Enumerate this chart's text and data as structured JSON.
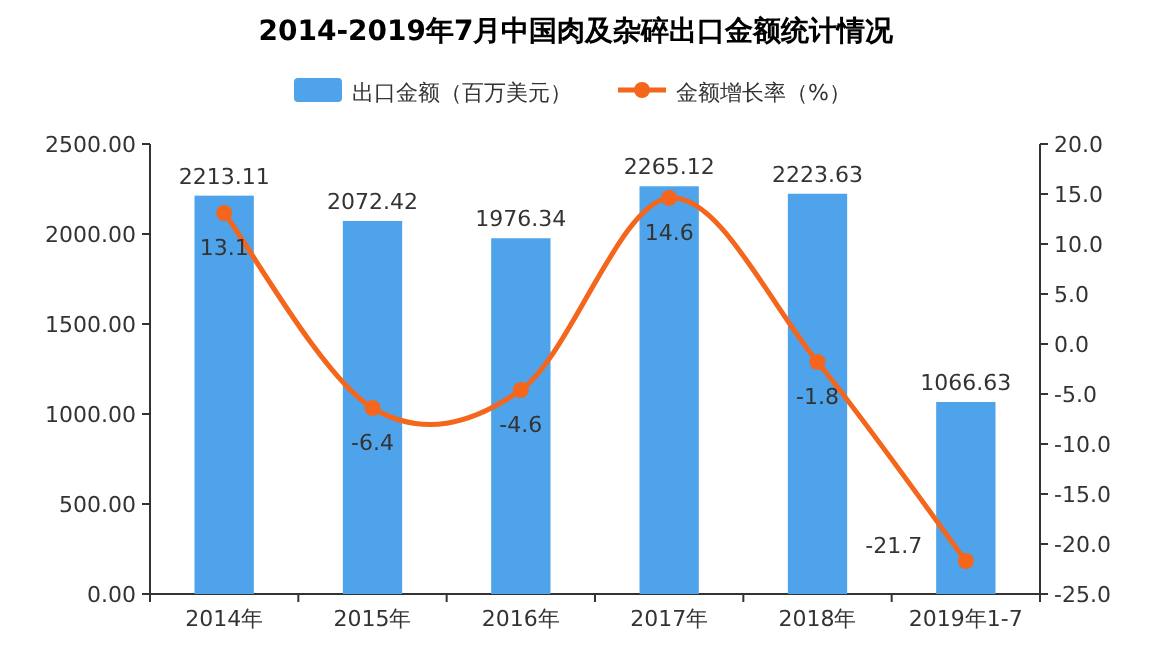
{
  "chart_data": {
    "type": "bar",
    "title": "2014-2019年7月中国肉及杂碎出口金额统计情况",
    "categories": [
      "2014年",
      "2015年",
      "2016年",
      "2017年",
      "2018年",
      "2019年1-7"
    ],
    "series": [
      {
        "name": "出口金额（百万美元）",
        "color": "#4fa3ea",
        "values": [
          2213.11,
          2072.42,
          1976.34,
          2265.12,
          2223.63,
          1066.63
        ]
      },
      {
        "name": "金额增长率（%）",
        "type": "line",
        "axis": "y2",
        "color": "#f3661c",
        "values": [
          13.1,
          -6.4,
          -4.6,
          14.6,
          -1.8,
          -21.7
        ]
      }
    ],
    "ylim": [
      0,
      2500
    ],
    "yticks": [
      {
        "value": 0,
        "label": "0.00"
      },
      {
        "value": 500,
        "label": "500.00"
      },
      {
        "value": 1000,
        "label": "1000.00"
      },
      {
        "value": 1500,
        "label": "1500.00"
      },
      {
        "value": 2000,
        "label": "2000.00"
      },
      {
        "value": 2500,
        "label": "2500.00"
      }
    ],
    "y2lim": [
      -25,
      20
    ],
    "y2ticks": [
      {
        "value": -25,
        "label": "-25.0"
      },
      {
        "value": -20,
        "label": "-20.0"
      },
      {
        "value": -15,
        "label": "-15.0"
      },
      {
        "value": -10,
        "label": "-10.0"
      },
      {
        "value": -5,
        "label": "-5.0"
      },
      {
        "value": 0,
        "label": "0.0"
      },
      {
        "value": 5,
        "label": "5.0"
      },
      {
        "value": 10,
        "label": "10.0"
      },
      {
        "value": 15,
        "label": "15.0"
      },
      {
        "value": 20,
        "label": "20.0"
      }
    ],
    "data_labels": true,
    "legend": "top",
    "marker": "circle"
  }
}
